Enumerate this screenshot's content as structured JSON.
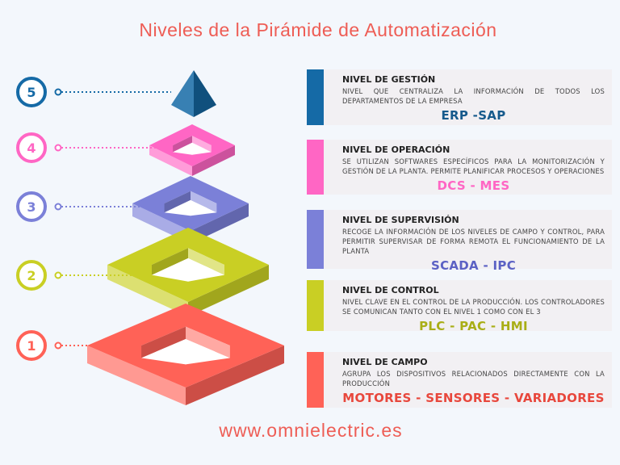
{
  "title": "Niveles de la Pirámide de Automatización",
  "footer": "www.omnielectric.es",
  "levels": [
    {
      "number": "5",
      "heading": "NIVEL DE GESTIÓN",
      "description": "NIVEL QUE CENTRALIZA LA INFORMACIÓN DE TODOS LOS DEPARTAMENTOS DE LA EMPRESA",
      "technologies": "ERP -SAP",
      "color": "#156aa6"
    },
    {
      "number": "4",
      "heading": "NIVEL DE OPERACIÓN",
      "description": "SE UTILIZAN SOFTWARES ESPECÍFICOS PARA LA MONITORIZACIÓN Y GESTIÓN DE LA PLANTA. PERMITE PLANIFICAR PROCESOS Y OPERACIONES",
      "technologies": "DCS - MES",
      "color": "#ff66c4"
    },
    {
      "number": "3",
      "heading": "NIVEL DE SUPERVISIÓN",
      "description": "RECOGE LA INFORMACIÓN DE LOS NIVELES DE CAMPO Y CONTROL, PARA PERMITIR SUPERVISAR DE FORMA REMOTA EL FUNCIONAMIENTO DE LA PLANTA",
      "technologies": "SCADA - IPC",
      "color": "#7b80d8"
    },
    {
      "number": "2",
      "heading": "NIVEL DE CONTROL",
      "description": "NIVEL CLAVE EN EL CONTROL DE LA PRODUCCIÓN. LOS CONTROLADORES SE COMUNICAN TANTO CON EL NIVEL 1 COMO CON EL 3",
      "technologies": "PLC - PAC - HMI",
      "color": "#c9cf24"
    },
    {
      "number": "1",
      "heading": "NIVEL DE CAMPO",
      "description": "AGRUPA LOS DISPOSITIVOS RELACIONADOS DIRECTAMENTE CON LA PRODUCCIÓN",
      "technologies": "MOTORES - SENSORES - VARIADORES",
      "color": "#ff6257"
    }
  ]
}
